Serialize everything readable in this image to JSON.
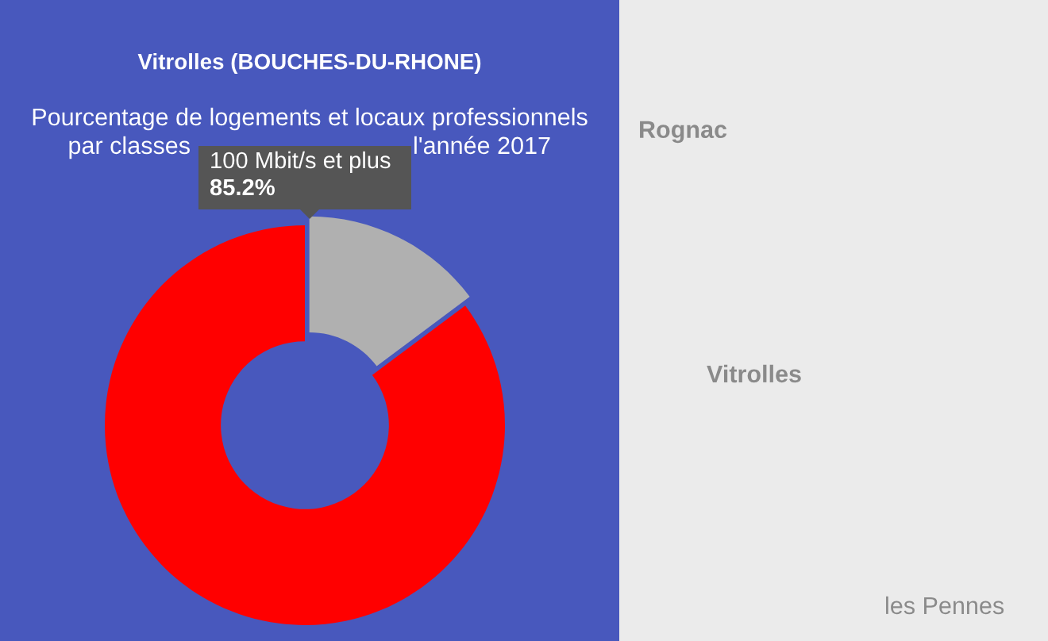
{
  "chart_data": {
    "type": "donut",
    "title": "Vitrolles (BOUCHES-DU-RHONE)",
    "subtitle": "Pourcentage de logements et locaux professionnels",
    "categories": [
      "100 Mbit/s et plus",
      null
    ],
    "values": [
      85.2,
      14.8
    ],
    "colors": [
      "#ff0000",
      "#b0b0b0"
    ],
    "value_labels": [
      "85.2%",
      null
    ],
    "annotations": [
      "par classes",
      "l'année 2017",
      "Rognac",
      "Vitrolles",
      "les Pennes"
    ]
  }
}
